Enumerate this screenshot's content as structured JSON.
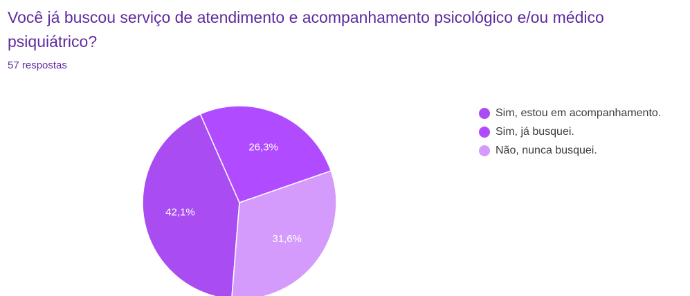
{
  "chart_data": {
    "type": "pie",
    "title": "Você já buscou serviço de atendimento e acompanhamento psicológico e/ou médico psiquiátrico?",
    "subtitle": "57 respostas",
    "categories": [
      "Sim, estou em acompanhamento.",
      "Sim, já busquei.",
      "Não, nunca busquei."
    ],
    "values": [
      42.1,
      26.3,
      31.6
    ],
    "value_labels": [
      "42,1%",
      "26,3%",
      "31,6%"
    ],
    "colors": [
      "#a94df2",
      "#b14bff",
      "#d49afc"
    ],
    "legend": "right"
  }
}
